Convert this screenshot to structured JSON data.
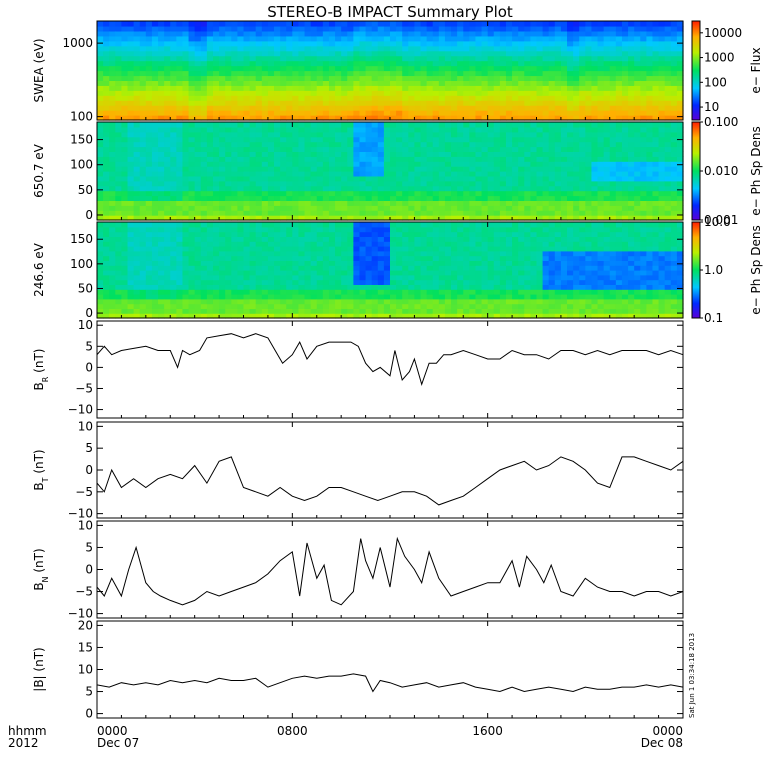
{
  "title": "STEREO-B IMPACT Summary Plot",
  "stamp": "Sat Jun 1 03:34:18 2013",
  "colors": {
    "line": "#000000",
    "frame": "#000000",
    "background": "#ffffff"
  },
  "chart_data": {
    "type": "multi-panel",
    "x_ticks": [
      {
        "hours": 0,
        "label": "0000",
        "date": "Dec 07"
      },
      {
        "hours": 8,
        "label": "0800",
        "date": ""
      },
      {
        "hours": 16,
        "label": "1600",
        "date": ""
      },
      {
        "hours": 24,
        "label": "0000",
        "date": "Dec 08"
      }
    ],
    "x_prefix": {
      "label": "hhmm",
      "year": "2012"
    },
    "x_range_hours": [
      0,
      24
    ],
    "panels": [
      {
        "kind": "spectrogram",
        "ylabel": "SWEA (eV)",
        "yscale": "log",
        "ylim": [
          90,
          2000
        ],
        "yticks": [
          100,
          1000
        ],
        "ytick_labels": [
          "100",
          "1000"
        ],
        "colorbar": {
          "label": "e− Flux",
          "scale": "log",
          "range": [
            3,
            30000
          ],
          "ticks": [
            10,
            100,
            1000,
            10000
          ],
          "tick_labels": [
            "10",
            "100",
            "1000",
            "10000"
          ],
          "palette": "rainbow"
        }
      },
      {
        "kind": "spectrogram",
        "ylabel": "650.7 eV",
        "yscale": "linear",
        "ylim": [
          -10,
          185
        ],
        "yticks": [
          0,
          50,
          100,
          150
        ],
        "ytick_labels": [
          "0",
          "50",
          "100",
          "150"
        ],
        "colorbar": {
          "label": "e− Ph Sp Dens",
          "scale": "log",
          "range": [
            0.001,
            0.1
          ],
          "ticks": [
            0.001,
            0.01,
            0.1
          ],
          "tick_labels": [
            "0.001",
            "0.010",
            "0.100"
          ],
          "palette": "rainbow"
        }
      },
      {
        "kind": "spectrogram",
        "ylabel": "246.6 eV",
        "yscale": "linear",
        "ylim": [
          -10,
          185
        ],
        "yticks": [
          0,
          50,
          100,
          150
        ],
        "ytick_labels": [
          "0",
          "50",
          "100",
          "150"
        ],
        "colorbar": {
          "label": "e− Ph Sp Dens",
          "scale": "log",
          "range": [
            0.1,
            10
          ],
          "ticks": [
            0.1,
            1,
            10
          ],
          "tick_labels": [
            "0.1",
            "1.0",
            "10.0"
          ],
          "palette": "rainbow"
        }
      },
      {
        "kind": "line",
        "ylabel": "B",
        "ylabel_sub": "R",
        "ylabel_unit": "(nT)",
        "ylim": [
          -12,
          11
        ],
        "yticks": [
          -10,
          -5,
          0,
          5,
          10
        ],
        "ytick_labels": [
          "−10",
          "−5",
          "0",
          "5",
          "10"
        ],
        "series": {
          "x": [
            0,
            0.3,
            0.6,
            1,
            1.5,
            2,
            2.5,
            3,
            3.3,
            3.5,
            3.8,
            4.2,
            4.5,
            5,
            5.5,
            6,
            6.5,
            7,
            7.3,
            7.6,
            8,
            8.3,
            8.6,
            9,
            9.5,
            10,
            10.4,
            10.7,
            11,
            11.3,
            11.6,
            12,
            12.2,
            12.5,
            12.8,
            13,
            13.3,
            13.6,
            13.9,
            14.2,
            14.5,
            15,
            15.5,
            16,
            16.5,
            17,
            17.5,
            18,
            18.5,
            19,
            19.5,
            20,
            20.5,
            21,
            21.5,
            22,
            22.5,
            23,
            23.5,
            24
          ],
          "values": [
            3,
            5,
            3,
            4,
            4.5,
            5,
            4,
            4,
            0,
            4,
            3,
            4,
            7,
            7.5,
            8,
            7,
            8,
            7,
            4,
            1,
            3,
            6,
            2,
            5,
            6,
            6,
            6,
            5,
            1,
            -1,
            0,
            -2,
            4,
            -3,
            -1,
            2,
            -4,
            1,
            1,
            3,
            3,
            4,
            3,
            2,
            2,
            4,
            3,
            3,
            2,
            4,
            4,
            3,
            4,
            3,
            4,
            4,
            4,
            3,
            4,
            3
          ]
        }
      },
      {
        "kind": "line",
        "ylabel": "B",
        "ylabel_sub": "T",
        "ylabel_unit": "(nT)",
        "ylim": [
          -11,
          11
        ],
        "yticks": [
          -10,
          -5,
          0,
          5,
          10
        ],
        "ytick_labels": [
          "−10",
          "−5",
          "0",
          "5",
          "10"
        ],
        "series": {
          "x": [
            0,
            0.3,
            0.6,
            1,
            1.5,
            2,
            2.5,
            3,
            3.5,
            4,
            4.5,
            5,
            5.5,
            6,
            6.5,
            7,
            7.5,
            8,
            8.5,
            9,
            9.5,
            10,
            10.5,
            11,
            11.5,
            12,
            12.5,
            13,
            13.5,
            14,
            14.5,
            15,
            15.5,
            16,
            16.5,
            17,
            17.5,
            18,
            18.5,
            19,
            19.5,
            20,
            20.5,
            21,
            21.5,
            22,
            22.5,
            23,
            23.5,
            24
          ],
          "values": [
            -3,
            -5,
            0,
            -4,
            -2,
            -4,
            -2,
            -1,
            -2,
            1,
            -3,
            2,
            3,
            -4,
            -5,
            -6,
            -4,
            -6,
            -7,
            -6,
            -4,
            -4,
            -5,
            -6,
            -7,
            -6,
            -5,
            -5,
            -6,
            -8,
            -7,
            -6,
            -4,
            -2,
            0,
            1,
            2,
            0,
            1,
            3,
            2,
            0,
            -3,
            -4,
            3,
            3,
            2,
            1,
            0,
            2
          ]
        }
      },
      {
        "kind": "line",
        "ylabel": "B",
        "ylabel_sub": "N",
        "ylabel_unit": "(nT)",
        "ylim": [
          -11,
          11
        ],
        "yticks": [
          -10,
          -5,
          0,
          5,
          10
        ],
        "ytick_labels": [
          "−10",
          "−5",
          "0",
          "5",
          "10"
        ],
        "series": {
          "x": [
            0,
            0.3,
            0.6,
            1,
            1.3,
            1.6,
            2,
            2.3,
            2.6,
            3,
            3.5,
            4,
            4.5,
            5,
            5.5,
            6,
            6.5,
            7,
            7.5,
            8,
            8.3,
            8.6,
            9,
            9.3,
            9.6,
            10,
            10.5,
            10.8,
            11,
            11.3,
            11.6,
            12,
            12.3,
            12.6,
            13,
            13.3,
            13.6,
            14,
            14.5,
            15,
            15.5,
            16,
            16.5,
            17,
            17.3,
            17.6,
            18,
            18.3,
            18.6,
            19,
            19.5,
            20,
            20.5,
            21,
            21.5,
            22,
            22.5,
            23,
            23.5,
            24
          ],
          "values": [
            -4,
            -6,
            -2,
            -6,
            0,
            5,
            -3,
            -5,
            -6,
            -7,
            -8,
            -7,
            -5,
            -6,
            -5,
            -4,
            -3,
            -1,
            2,
            4,
            -6,
            6,
            -2,
            1,
            -7,
            -8,
            -5,
            7,
            2,
            -2,
            5,
            -4,
            7,
            3,
            0,
            -3,
            4,
            -2,
            -6,
            -5,
            -4,
            -3,
            -3,
            2,
            -4,
            3,
            0,
            -3,
            1,
            -5,
            -6,
            -2,
            -4,
            -5,
            -5,
            -6,
            -5,
            -5,
            -6,
            -5
          ]
        }
      },
      {
        "kind": "line",
        "ylabel": "|B|",
        "ylabel_unit": "(nT)",
        "ylim": [
          -1,
          21
        ],
        "yticks": [
          0,
          5,
          10,
          15,
          20
        ],
        "ytick_labels": [
          "0",
          "5",
          "10",
          "15",
          "20"
        ],
        "series": {
          "x": [
            0,
            0.5,
            1,
            1.5,
            2,
            2.5,
            3,
            3.5,
            4,
            4.5,
            5,
            5.5,
            6,
            6.5,
            7,
            7.5,
            8,
            8.5,
            9,
            9.5,
            10,
            10.5,
            11,
            11.3,
            11.6,
            12,
            12.5,
            13,
            13.5,
            14,
            14.5,
            15,
            15.5,
            16,
            16.5,
            17,
            17.5,
            18,
            18.5,
            19,
            19.5,
            20,
            20.5,
            21,
            21.5,
            22,
            22.5,
            23,
            23.5,
            24
          ],
          "values": [
            6.5,
            6,
            7,
            6.5,
            7,
            6.5,
            7.5,
            7,
            7.5,
            7,
            8,
            7.5,
            7.5,
            8,
            6,
            7,
            8,
            8.5,
            8,
            8.5,
            8.5,
            9,
            8.5,
            5,
            7.5,
            7,
            6,
            6.5,
            7,
            6,
            6.5,
            7,
            6,
            5.5,
            5,
            6,
            5,
            5.5,
            6,
            5.5,
            5,
            6,
            5.5,
            5.5,
            6,
            6,
            6.5,
            6,
            6.5,
            6
          ]
        }
      }
    ]
  }
}
